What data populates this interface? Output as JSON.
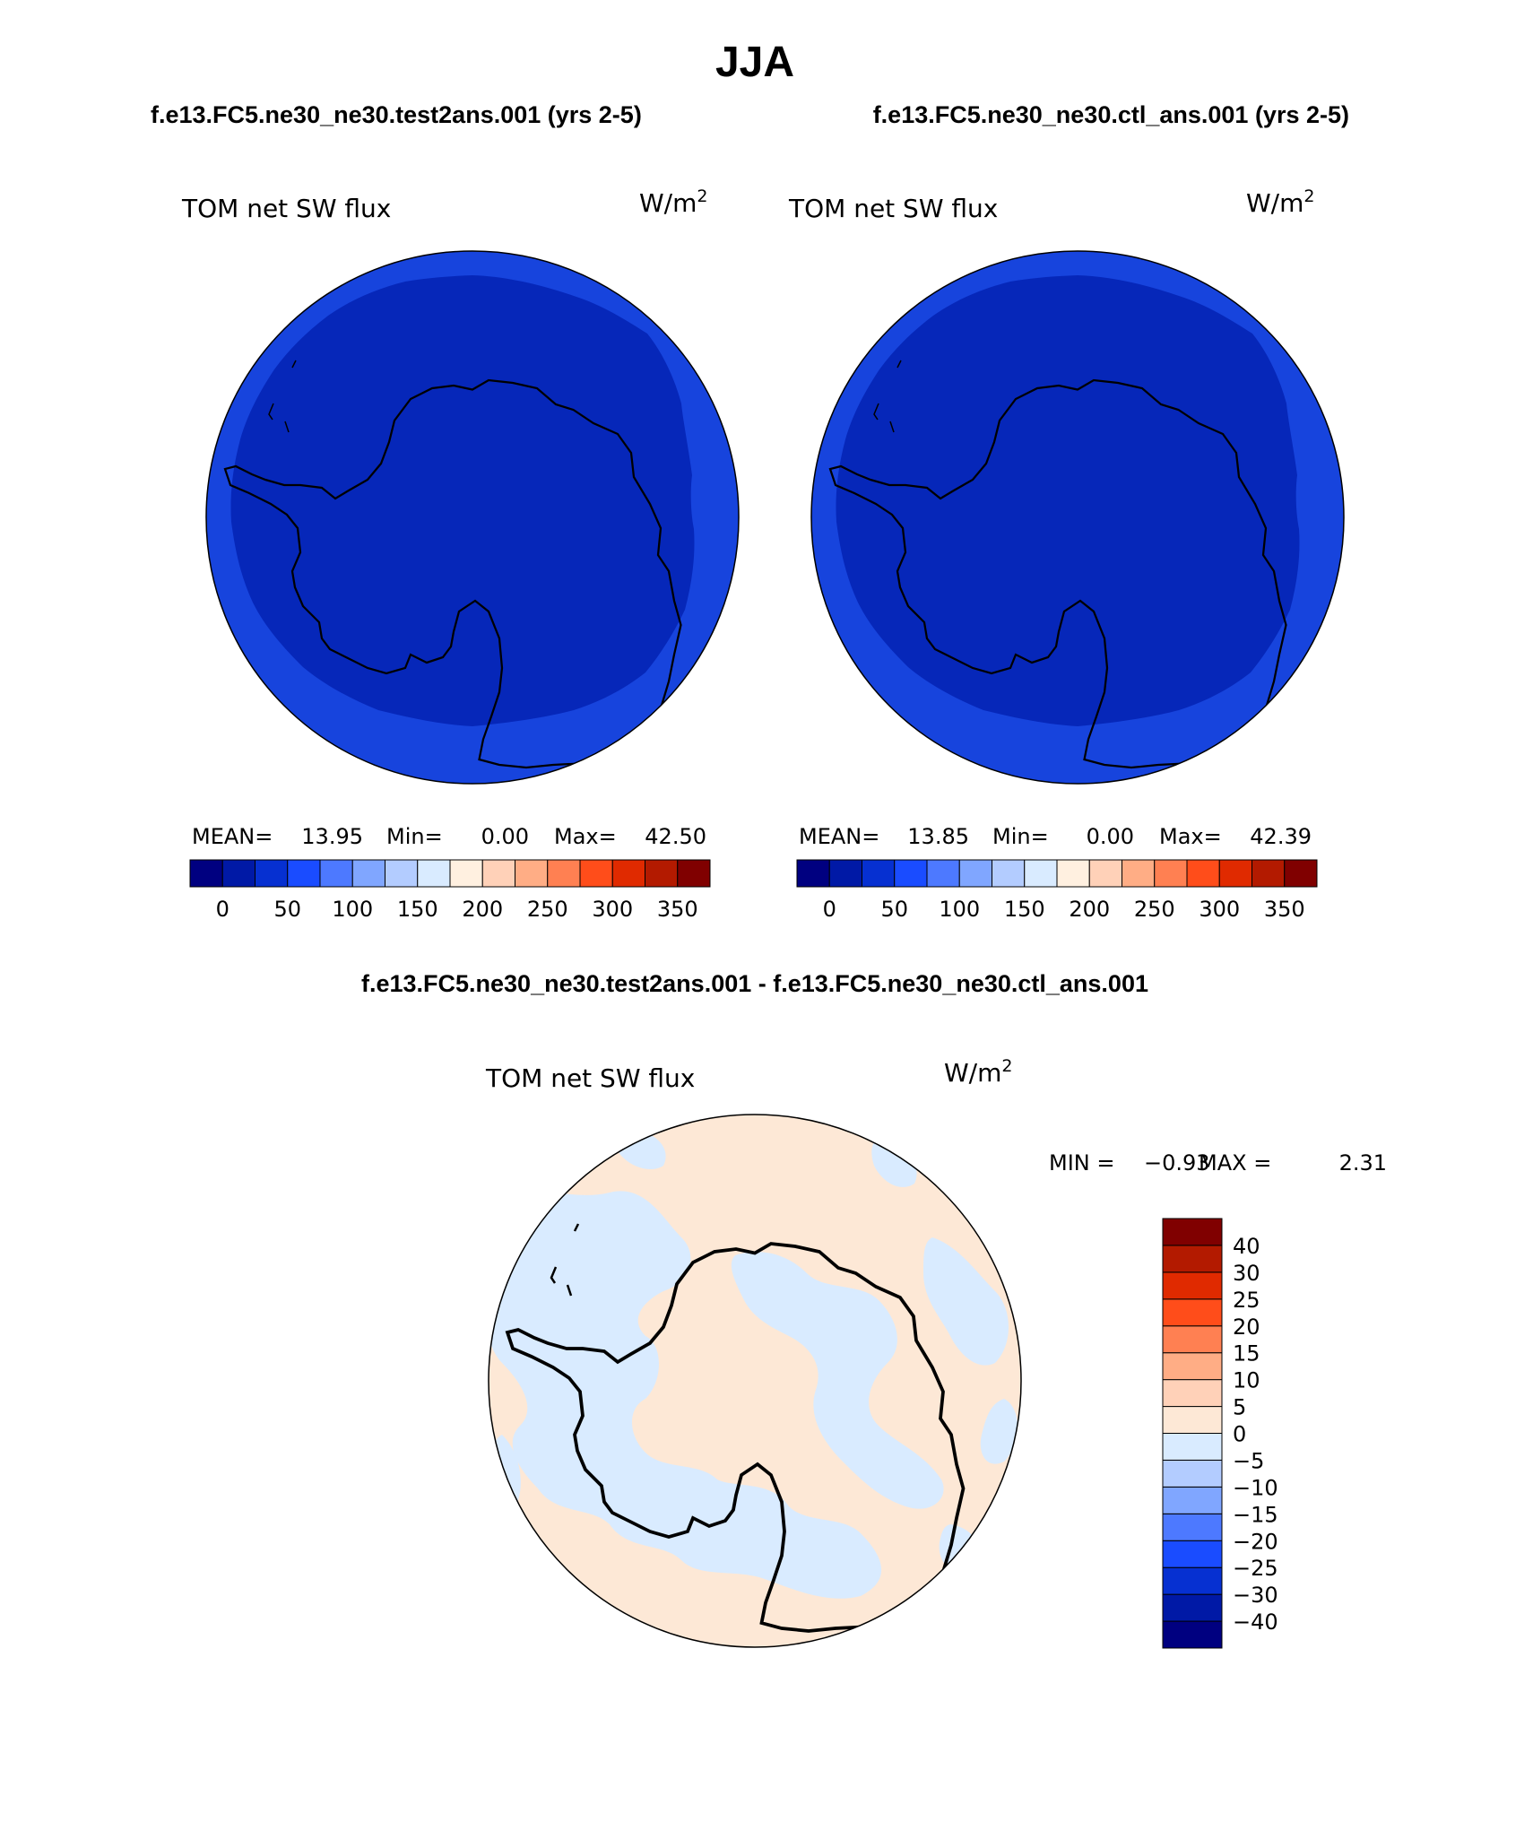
{
  "season_title": "JJA",
  "case_titles": {
    "left": "f.e13.FC5.ne30_ne30.test2ans.001 (yrs 2-5)",
    "right": "f.e13.FC5.ne30_ne30.ctl_ans.001 (yrs 2-5)"
  },
  "diff_title": "f.e13.FC5.ne30_ne30.test2ans.001 - f.e13.FC5.ne30_ne30.ctl_ans.001",
  "panels": [
    {
      "variable": "TOM net SW flux",
      "units_base": "W/m",
      "units_exp": "2",
      "mean_label": "MEAN=",
      "mean": "13.95",
      "min_label": "Min=",
      "min": "0.00",
      "max_label": "Max=",
      "max": "42.50"
    },
    {
      "variable": "TOM net SW flux",
      "units_base": "W/m",
      "units_exp": "2",
      "mean_label": "MEAN=",
      "mean": "13.85",
      "min_label": "Min=",
      "min": "0.00",
      "max_label": "Max=",
      "max": "42.39"
    }
  ],
  "diff_panel": {
    "variable": "TOM net SW flux",
    "units_base": "W/m",
    "units_exp": "2",
    "min_label": "MIN =",
    "min": "−0.93",
    "max_label": "MAX =",
    "max": "2.31"
  },
  "abs_colorbar": {
    "colors": [
      "#000080",
      "#0019a6",
      "#0630d1",
      "#1a4cff",
      "#4d79ff",
      "#80a6ff",
      "#b3ccff",
      "#d9ebff",
      "#fff0e0",
      "#ffd1b8",
      "#ffad85",
      "#ff8052",
      "#ff4d1a",
      "#e02a00",
      "#b31a00",
      "#800000"
    ],
    "ticks": [
      "0",
      "50",
      "100",
      "150",
      "200",
      "250",
      "300",
      "350"
    ]
  },
  "diff_colorbar": {
    "colors": [
      "#000080",
      "#0019a6",
      "#0630d1",
      "#1a4cff",
      "#4d79ff",
      "#80a6ff",
      "#b3ccff",
      "#d9ebff",
      "#fde8d6",
      "#ffd1b8",
      "#ffad85",
      "#ff8052",
      "#ff4d1a",
      "#e02a00",
      "#b31a00",
      "#800000"
    ],
    "ticks": [
      "−40",
      "−30",
      "−25",
      "−20",
      "−15",
      "−10",
      "−5",
      "0",
      "5",
      "10",
      "15",
      "20",
      "25",
      "30",
      "40"
    ]
  },
  "map_colors": {
    "outer_ring": "#1744dd",
    "inner_field": "#0627b9",
    "diff_positive": "#fde8d6",
    "diff_negative": "#d9ebff",
    "coast": "#000000"
  }
}
